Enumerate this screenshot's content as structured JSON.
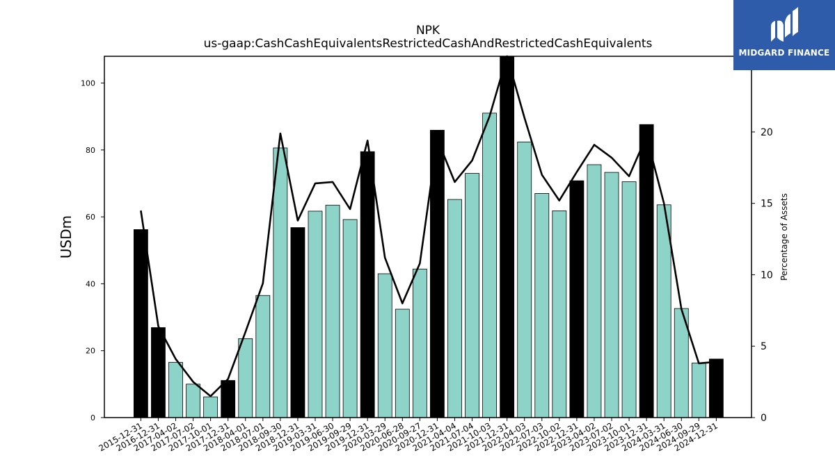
{
  "chart_data": {
    "type": "bar",
    "title": "NPK",
    "subtitle": "us-gaap:CashCashEquivalentsRestrictedCashAndRestrictedCashEquivalents",
    "ylabel": "USDm",
    "y2label": "Percentage of Assets",
    "ylim": [
      0,
      108
    ],
    "y2lim": [
      0,
      25.3
    ],
    "yticks": [
      0,
      20,
      40,
      60,
      80,
      100
    ],
    "y2ticks": [
      0,
      5,
      10,
      15,
      20
    ],
    "categories": [
      "2015-12-31",
      "2016-12-31",
      "2017-04-02",
      "2017-07-02",
      "2017-10-01",
      "2017-12-31",
      "2018-04-01",
      "2018-07-01",
      "2018-09-30",
      "2018-12-31",
      "2019-03-31",
      "2019-06-30",
      "2019-09-29",
      "2019-12-31",
      "2020-03-29",
      "2020-06-28",
      "2020-09-27",
      "2020-12-31",
      "2021-04-04",
      "2021-07-04",
      "2021-10-03",
      "2021-12-31",
      "2022-04-03",
      "2022-07-03",
      "2022-10-02",
      "2022-12-31",
      "2023-04-02",
      "2023-07-02",
      "2023-10-01",
      "2023-12-31",
      "2024-03-31",
      "2024-06-30",
      "2024-09-29",
      "2024-12-31"
    ],
    "series": [
      {
        "kind": "bar",
        "values": [
          56.2,
          26.9,
          16.5,
          10.0,
          6.2,
          11.1,
          23.6,
          36.5,
          80.6,
          56.8,
          61.7,
          63.5,
          59.2,
          79.5,
          43.0,
          32.4,
          44.4,
          85.9,
          65.2,
          73.0,
          91.0,
          108.0,
          82.4,
          67.0,
          61.8,
          70.8,
          75.6,
          73.3,
          70.5,
          87.6,
          63.6,
          32.6,
          16.3,
          17.5
        ],
        "annual": [
          true,
          true,
          false,
          false,
          false,
          true,
          false,
          false,
          false,
          true,
          false,
          false,
          false,
          true,
          false,
          false,
          false,
          true,
          false,
          false,
          false,
          true,
          false,
          false,
          false,
          true,
          false,
          false,
          false,
          true,
          false,
          false,
          false,
          true
        ]
      },
      {
        "kind": "line",
        "axis": "right",
        "values": [
          14.5,
          6.4,
          4.1,
          2.5,
          1.5,
          2.7,
          6.0,
          9.4,
          19.9,
          13.8,
          16.4,
          16.5,
          14.6,
          19.4,
          11.2,
          8.0,
          10.8,
          19.5,
          16.5,
          18.0,
          21.1,
          25.3,
          21.0,
          17.0,
          15.2,
          17.2,
          19.1,
          18.2,
          16.9,
          19.7,
          15.0,
          7.6,
          3.8,
          3.9
        ]
      }
    ],
    "colors": {
      "annual_bar": "#000000",
      "quarter_bar": "#8dd3c7",
      "line": "#000000"
    }
  },
  "logo": {
    "text": "MIDGARD FINANCE",
    "color": "#2f5caa"
  }
}
